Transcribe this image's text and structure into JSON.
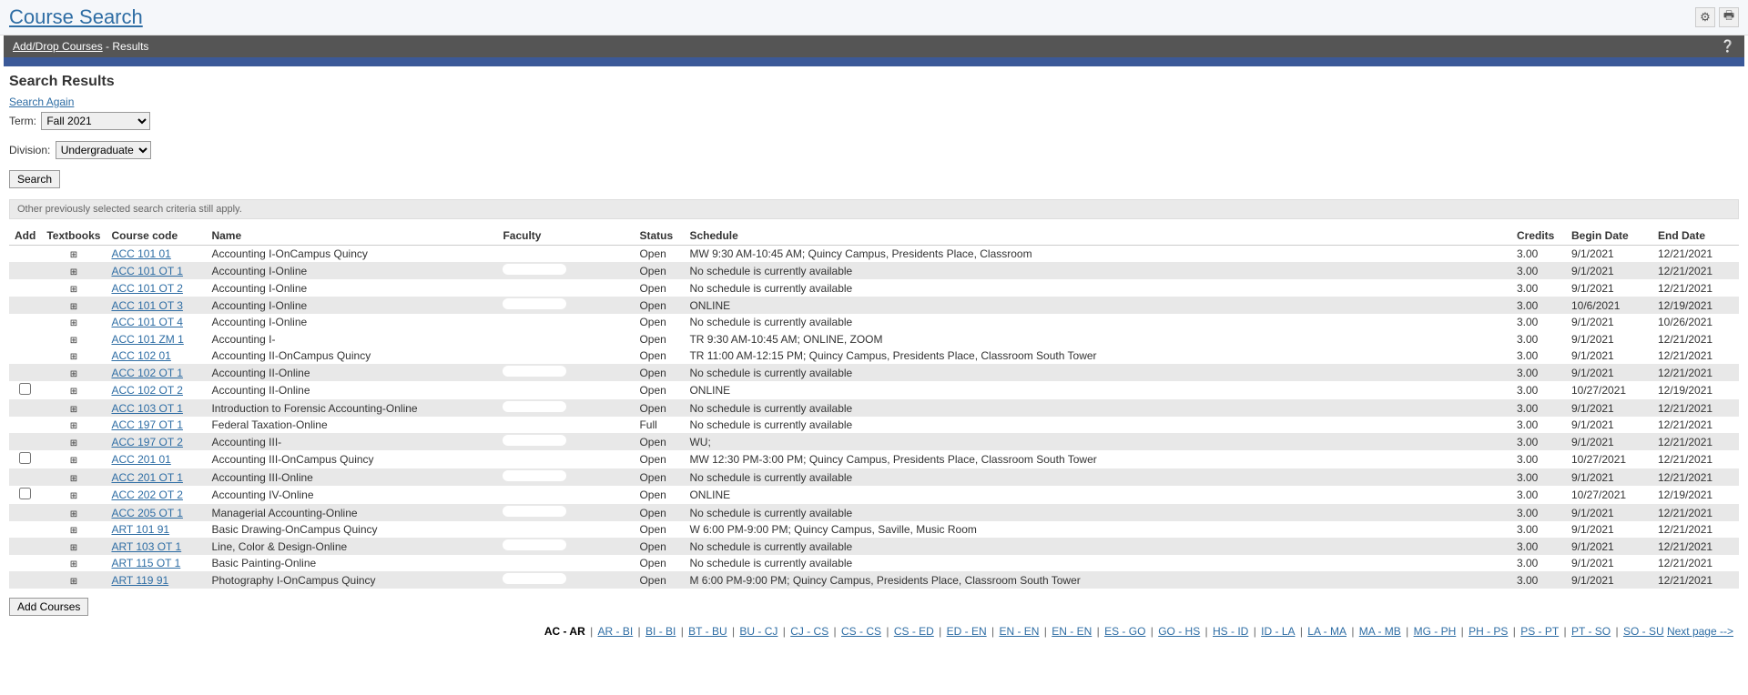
{
  "page_title": "Course Search",
  "breadcrumb": {
    "link": "Add/Drop Courses",
    "tail": " - Results"
  },
  "section_heading": "Search Results",
  "search_again_label": "Search Again",
  "term": {
    "label": "Term:",
    "selected": "Fall 2021"
  },
  "division": {
    "label": "Division:",
    "selected": "Undergraduate"
  },
  "search_btn": "Search",
  "note": "Other previously selected search criteria still apply.",
  "add_courses_btn": "Add Courses",
  "columns": {
    "add": "Add",
    "textbooks": "Textbooks",
    "code": "Course code",
    "name": "Name",
    "faculty": "Faculty",
    "status": "Status",
    "schedule": "Schedule",
    "credits": "Credits",
    "begin": "Begin Date",
    "end": "End Date"
  },
  "rows": [
    {
      "alt": 0,
      "cb": 0,
      "tb": 1,
      "code": "ACC 101 01",
      "name": "Accounting I-OnCampus Quincy",
      "fac": 0,
      "status": "Open",
      "sched": "MW 9:30 AM-10:45 AM; Quincy Campus, Presidents Place, Classroom",
      "cr": "3.00",
      "bd": "9/1/2021",
      "ed": "12/21/2021"
    },
    {
      "alt": 1,
      "cb": 0,
      "tb": 1,
      "code": "ACC 101 OT 1",
      "name": "Accounting I-Online",
      "fac": 1,
      "status": "Open",
      "sched": "No schedule is currently available",
      "cr": "3.00",
      "bd": "9/1/2021",
      "ed": "12/21/2021"
    },
    {
      "alt": 0,
      "cb": 0,
      "tb": 1,
      "code": "ACC 101 OT 2",
      "name": "Accounting I-Online",
      "fac": 1,
      "status": "Open",
      "sched": "No schedule is currently available",
      "cr": "3.00",
      "bd": "9/1/2021",
      "ed": "12/21/2021"
    },
    {
      "alt": 1,
      "cb": 0,
      "tb": 1,
      "code": "ACC 101 OT 3",
      "name": "Accounting I-Online",
      "fac": 1,
      "status": "Open",
      "sched": "ONLINE",
      "cr": "3.00",
      "bd": "10/6/2021",
      "ed": "12/19/2021"
    },
    {
      "alt": 0,
      "cb": 0,
      "tb": 1,
      "code": "ACC 101 OT 4",
      "name": "Accounting I-Online",
      "fac": 0,
      "status": "Open",
      "sched": "No schedule is currently available",
      "cr": "3.00",
      "bd": "9/1/2021",
      "ed": "10/26/2021"
    },
    {
      "alt": 0,
      "cb": 0,
      "tb": 1,
      "code": "ACC 101 ZM 1",
      "name": "Accounting I-",
      "fac": 1,
      "status": "Open",
      "sched": "TR 9:30 AM-10:45 AM; ONLINE, ZOOM",
      "cr": "3.00",
      "bd": "9/1/2021",
      "ed": "12/21/2021"
    },
    {
      "alt": 0,
      "cb": 0,
      "tb": 1,
      "code": "ACC 102 01",
      "name": "Accounting II-OnCampus Quincy",
      "fac": 0,
      "status": "Open",
      "sched": "TR 11:00 AM-12:15 PM; Quincy Campus, Presidents Place, Classroom South Tower",
      "cr": "3.00",
      "bd": "9/1/2021",
      "ed": "12/21/2021"
    },
    {
      "alt": 1,
      "cb": 0,
      "tb": 1,
      "code": "ACC 102 OT 1",
      "name": "Accounting II-Online",
      "fac": 1,
      "status": "Open",
      "sched": "No schedule is currently available",
      "cr": "3.00",
      "bd": "9/1/2021",
      "ed": "12/21/2021"
    },
    {
      "alt": 0,
      "cb": 1,
      "tb": 1,
      "code": "ACC 102 OT 2",
      "name": "Accounting II-Online",
      "fac": 0,
      "status": "Open",
      "sched": "ONLINE",
      "cr": "3.00",
      "bd": "10/27/2021",
      "ed": "12/19/2021"
    },
    {
      "alt": 1,
      "cb": 0,
      "tb": 1,
      "code": "ACC 103 OT 1",
      "name": "Introduction to Forensic Accounting-Online",
      "fac": 1,
      "status": "Open",
      "sched": "No schedule is currently available",
      "cr": "3.00",
      "bd": "9/1/2021",
      "ed": "12/21/2021"
    },
    {
      "alt": 0,
      "cb": 0,
      "tb": 1,
      "code": "ACC 197 OT 1",
      "name": "Federal Taxation-Online",
      "fac": 0,
      "status": "Full",
      "sched": "No schedule is currently available",
      "cr": "3.00",
      "bd": "9/1/2021",
      "ed": "12/21/2021"
    },
    {
      "alt": 1,
      "cb": 0,
      "tb": 1,
      "code": "ACC 197 OT 2",
      "name": "Accounting III-",
      "fac": 1,
      "status": "Open",
      "sched": "WU;",
      "cr": "3.00",
      "bd": "9/1/2021",
      "ed": "12/21/2021"
    },
    {
      "alt": 0,
      "cb": 1,
      "tb": 1,
      "code": "ACC 201 01",
      "name": "Accounting III-OnCampus Quincy",
      "fac": 0,
      "status": "Open",
      "sched": "MW 12:30 PM-3:00 PM; Quincy Campus, Presidents Place, Classroom South Tower",
      "cr": "3.00",
      "bd": "10/27/2021",
      "ed": "12/21/2021"
    },
    {
      "alt": 1,
      "cb": 0,
      "tb": 1,
      "code": "ACC 201 OT 1",
      "name": "Accounting III-Online",
      "fac": 1,
      "status": "Open",
      "sched": "No schedule is currently available",
      "cr": "3.00",
      "bd": "9/1/2021",
      "ed": "12/21/2021"
    },
    {
      "alt": 0,
      "cb": 1,
      "tb": 1,
      "code": "ACC 202 OT 2",
      "name": "Accounting IV-Online",
      "fac": 0,
      "status": "Open",
      "sched": "ONLINE",
      "cr": "3.00",
      "bd": "10/27/2021",
      "ed": "12/19/2021"
    },
    {
      "alt": 1,
      "cb": 0,
      "tb": 1,
      "code": "ACC 205 OT 1",
      "name": "Managerial Accounting-Online",
      "fac": 1,
      "status": "Open",
      "sched": "No schedule is currently available",
      "cr": "3.00",
      "bd": "9/1/2021",
      "ed": "12/21/2021"
    },
    {
      "alt": 0,
      "cb": 0,
      "tb": 1,
      "code": "ART 101 91",
      "name": "Basic Drawing-OnCampus Quincy",
      "fac": 0,
      "status": "Open",
      "sched": "W 6:00 PM-9:00 PM; Quincy Campus, Saville, Music Room",
      "cr": "3.00",
      "bd": "9/1/2021",
      "ed": "12/21/2021"
    },
    {
      "alt": 1,
      "cb": 0,
      "tb": 1,
      "code": "ART 103 OT 1",
      "name": "Line, Color & Design-Online",
      "fac": 1,
      "status": "Open",
      "sched": "No schedule is currently available",
      "cr": "3.00",
      "bd": "9/1/2021",
      "ed": "12/21/2021"
    },
    {
      "alt": 0,
      "cb": 0,
      "tb": 1,
      "code": "ART 115 OT 1",
      "name": "Basic Painting-Online",
      "fac": 0,
      "status": "Open",
      "sched": "No schedule is currently available",
      "cr": "3.00",
      "bd": "9/1/2021",
      "ed": "12/21/2021"
    },
    {
      "alt": 1,
      "cb": 0,
      "tb": 1,
      "code": "ART 119 91",
      "name": "Photography I-OnCampus Quincy",
      "fac": 1,
      "status": "Open",
      "sched": "M 6:00 PM-9:00 PM; Quincy Campus, Presidents Place, Classroom South Tower",
      "cr": "3.00",
      "bd": "9/1/2021",
      "ed": "12/21/2021"
    }
  ],
  "pagination": {
    "current": "AC - AR",
    "links": [
      "AR - BI",
      "BI - BI",
      "BT - BU",
      "BU - CJ",
      "CJ - CS",
      "CS - CS",
      "CS - ED",
      "ED - EN",
      "EN - EN",
      "EN - EN",
      "ES - GO",
      "GO - HS",
      "HS - ID",
      "ID - LA",
      "LA - MA",
      "MA - MB",
      "MG - PH",
      "PH - PS",
      "PS - PT",
      "PT - SO",
      "SO - SU"
    ],
    "next": "Next page -->"
  }
}
